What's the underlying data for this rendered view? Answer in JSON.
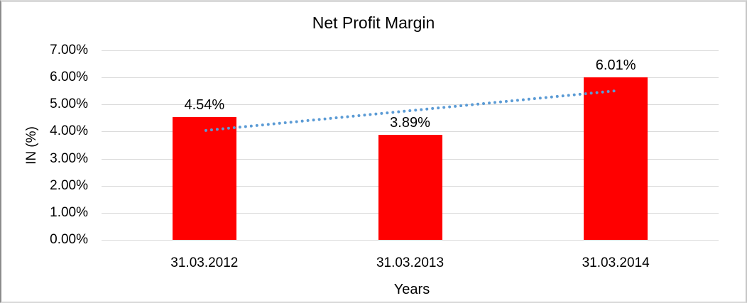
{
  "chart_data": {
    "type": "bar",
    "title": "Net Profit Margin",
    "xlabel": "Years",
    "ylabel": "IN (%)",
    "categories": [
      "31.03.2012",
      "31.03.2013",
      "31.03.2014"
    ],
    "series": [
      {
        "name": "Net Profit Margin",
        "values": [
          4.54,
          3.89,
          6.01
        ],
        "labels": [
          "4.54%",
          "3.89%",
          "6.01%"
        ],
        "color": "#ff0000"
      }
    ],
    "ylim": [
      0,
      7
    ],
    "ytick_step": 1,
    "ytick_labels": [
      "0.00%",
      "1.00%",
      "2.00%",
      "3.00%",
      "4.00%",
      "5.00%",
      "6.00%",
      "7.00%"
    ],
    "grid": true,
    "gridline_color": "#d9d9d9",
    "legend": "none",
    "trendline": {
      "type": "linear",
      "style": "dotted",
      "color": "#5b9bd5",
      "start_value": 4.08,
      "end_value": 5.55
    }
  }
}
